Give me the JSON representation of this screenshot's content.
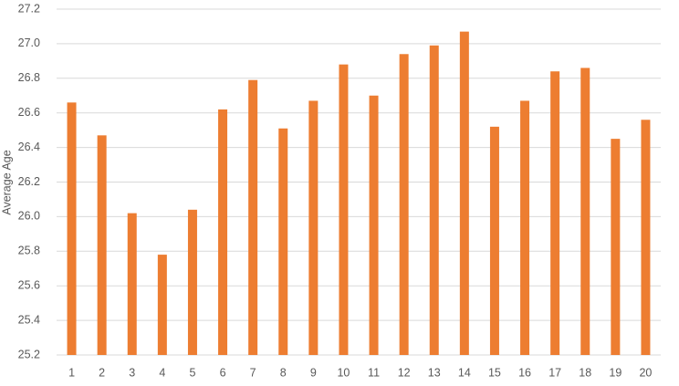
{
  "chart_data": {
    "type": "bar",
    "y_label": "Average Age",
    "categories": [
      "1",
      "2",
      "3",
      "4",
      "5",
      "6",
      "7",
      "8",
      "9",
      "10",
      "11",
      "12",
      "13",
      "14",
      "15",
      "16",
      "17",
      "18",
      "19",
      "20"
    ],
    "values": [
      26.66,
      26.47,
      26.02,
      25.78,
      26.04,
      26.62,
      26.79,
      26.51,
      26.67,
      26.88,
      26.7,
      26.94,
      26.99,
      27.07,
      26.52,
      26.67,
      26.84,
      26.86,
      26.45,
      26.56
    ],
    "color": "#ed7d31",
    "ylim": [
      25.2,
      27.2
    ],
    "yticks": [
      {
        "value": 25.2,
        "label": "25.2"
      },
      {
        "value": 25.4,
        "label": "25.4"
      },
      {
        "value": 25.6,
        "label": "25.6"
      },
      {
        "value": 25.8,
        "label": "25.8"
      },
      {
        "value": 26,
        "label": "26.0"
      },
      {
        "value": 26.2,
        "label": "26.2"
      },
      {
        "value": 26.4,
        "label": "26.4"
      },
      {
        "value": 26.6,
        "label": "26.6"
      },
      {
        "value": 26.8,
        "label": "26.8"
      },
      {
        "value": 27,
        "label": "27.0"
      },
      {
        "value": 27.2,
        "label": "27.2"
      }
    ],
    "grid": true
  }
}
